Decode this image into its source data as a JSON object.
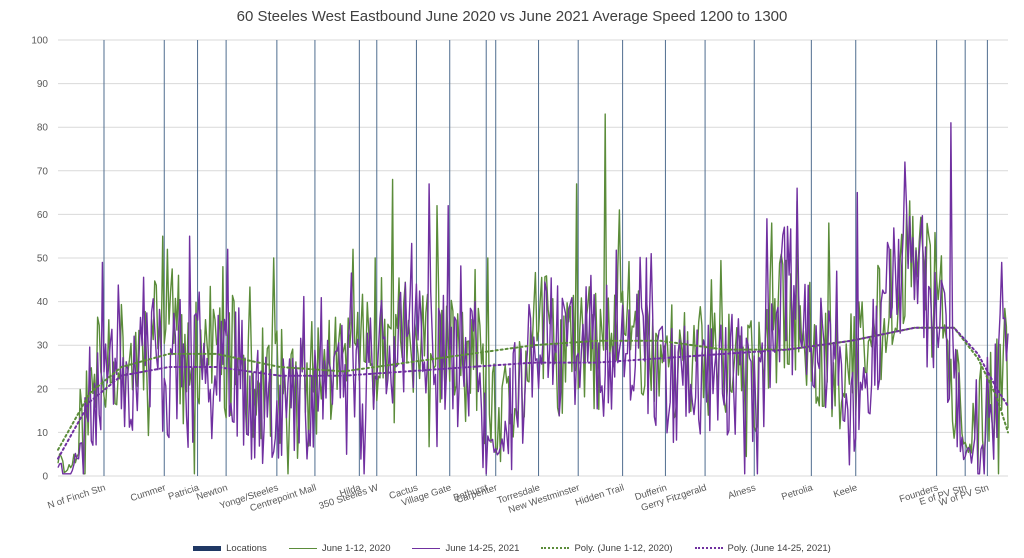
{
  "chart_data": {
    "type": "line",
    "title": "60 Steeles West Eastbound June 2020 vs June 2021 Average Speed 1200 to 1300",
    "xlabel": "",
    "ylabel": "",
    "ylim": [
      0,
      100
    ],
    "yticks": [
      "0",
      "10",
      "20",
      "30",
      "40",
      "50",
      "60",
      "70",
      "80",
      "90",
      "100"
    ],
    "grid": true,
    "legend_position": "bottom",
    "n_points": 600,
    "locations": [
      {
        "name": "N of Finch Stn",
        "index": 29
      },
      {
        "name": "Cummer",
        "index": 67
      },
      {
        "name": "Patricia",
        "index": 88
      },
      {
        "name": "Newton",
        "index": 106
      },
      {
        "name": "Yonge/Steeles",
        "index": 138
      },
      {
        "name": "Centrepoint Mall",
        "index": 162
      },
      {
        "name": "Hilda",
        "index": 190
      },
      {
        "name": "350 Steeles W",
        "index": 201
      },
      {
        "name": "Cactus",
        "index": 226
      },
      {
        "name": "Village Gate",
        "index": 247
      },
      {
        "name": "Bathurst",
        "index": 270
      },
      {
        "name": "Carpenter",
        "index": 276
      },
      {
        "name": "Torresdale",
        "index": 303
      },
      {
        "name": "New Westminster",
        "index": 328
      },
      {
        "name": "Hidden Trail",
        "index": 356
      },
      {
        "name": "Dufferin",
        "index": 383
      },
      {
        "name": "Gerry Fitzgerald",
        "index": 408
      },
      {
        "name": "Alness",
        "index": 439
      },
      {
        "name": "Petrolia",
        "index": 475
      },
      {
        "name": "Keele",
        "index": 503
      },
      {
        "name": "Founders",
        "index": 554
      },
      {
        "name": "E of PV Stn",
        "index": 572
      },
      {
        "name": "W of PV Stn",
        "index": 586
      }
    ],
    "series": [
      {
        "name": "June 1-12, 2020",
        "color": "#5b8c3a",
        "style": "solid",
        "anchors": [
          [
            0,
            4
          ],
          [
            4,
            2
          ],
          [
            8,
            2
          ],
          [
            14,
            8
          ],
          [
            22,
            20
          ],
          [
            28,
            28
          ],
          [
            34,
            30
          ],
          [
            40,
            26
          ],
          [
            50,
            28
          ],
          [
            58,
            34
          ],
          [
            68,
            30
          ],
          [
            72,
            40
          ],
          [
            78,
            24
          ],
          [
            84,
            20
          ],
          [
            90,
            32
          ],
          [
            96,
            30
          ],
          [
            104,
            26
          ],
          [
            112,
            28
          ],
          [
            120,
            22
          ],
          [
            128,
            20
          ],
          [
            136,
            22
          ],
          [
            146,
            18
          ],
          [
            156,
            20
          ],
          [
            166,
            24
          ],
          [
            176,
            26
          ],
          [
            186,
            28
          ],
          [
            196,
            30
          ],
          [
            206,
            32
          ],
          [
            216,
            36
          ],
          [
            222,
            30
          ],
          [
            228,
            28
          ],
          [
            236,
            30
          ],
          [
            246,
            28
          ],
          [
            256,
            26
          ],
          [
            266,
            26
          ],
          [
            272,
            14
          ],
          [
            278,
            10
          ],
          [
            284,
            14
          ],
          [
            292,
            22
          ],
          [
            300,
            30
          ],
          [
            308,
            34
          ],
          [
            316,
            26
          ],
          [
            324,
            28
          ],
          [
            332,
            30
          ],
          [
            342,
            28
          ],
          [
            350,
            32
          ],
          [
            356,
            40
          ],
          [
            362,
            38
          ],
          [
            368,
            30
          ],
          [
            376,
            30
          ],
          [
            384,
            28
          ],
          [
            392,
            26
          ],
          [
            400,
            24
          ],
          [
            408,
            26
          ],
          [
            416,
            28
          ],
          [
            424,
            26
          ],
          [
            432,
            24
          ],
          [
            440,
            22
          ],
          [
            448,
            30
          ],
          [
            456,
            38
          ],
          [
            464,
            36
          ],
          [
            472,
            32
          ],
          [
            480,
            28
          ],
          [
            488,
            26
          ],
          [
            496,
            24
          ],
          [
            504,
            26
          ],
          [
            512,
            30
          ],
          [
            520,
            40
          ],
          [
            528,
            44
          ],
          [
            536,
            48
          ],
          [
            542,
            50
          ],
          [
            548,
            46
          ],
          [
            554,
            42
          ],
          [
            560,
            36
          ],
          [
            566,
            20
          ],
          [
            570,
            8
          ],
          [
            574,
            6
          ],
          [
            580,
            10
          ],
          [
            588,
            16
          ],
          [
            594,
            24
          ],
          [
            599,
            34
          ]
        ],
        "spikes": [
          [
            66,
            55
          ],
          [
            69,
            52
          ],
          [
            104,
            48
          ],
          [
            136,
            50
          ],
          [
            186,
            52
          ],
          [
            200,
            50
          ],
          [
            211,
            68
          ],
          [
            239,
            62
          ],
          [
            271,
            50
          ],
          [
            327,
            67
          ],
          [
            345,
            83
          ],
          [
            354,
            61
          ],
          [
            412,
            45
          ],
          [
            450,
            58
          ],
          [
            466,
            63
          ],
          [
            486,
            58
          ],
          [
            535,
            60
          ]
        ],
        "seed": 11,
        "amplitude": 10
      },
      {
        "name": "June 14-25, 2021",
        "color": "#7030a0",
        "style": "solid",
        "anchors": [
          [
            0,
            3
          ],
          [
            4,
            1
          ],
          [
            8,
            1
          ],
          [
            14,
            6
          ],
          [
            22,
            18
          ],
          [
            28,
            26
          ],
          [
            36,
            30
          ],
          [
            44,
            24
          ],
          [
            52,
            26
          ],
          [
            60,
            30
          ],
          [
            68,
            22
          ],
          [
            76,
            26
          ],
          [
            84,
            20
          ],
          [
            92,
            30
          ],
          [
            100,
            32
          ],
          [
            108,
            28
          ],
          [
            116,
            22
          ],
          [
            124,
            18
          ],
          [
            132,
            20
          ],
          [
            140,
            18
          ],
          [
            148,
            16
          ],
          [
            156,
            20
          ],
          [
            164,
            22
          ],
          [
            172,
            24
          ],
          [
            180,
            26
          ],
          [
            188,
            24
          ],
          [
            196,
            26
          ],
          [
            204,
            30
          ],
          [
            212,
            32
          ],
          [
            220,
            34
          ],
          [
            228,
            30
          ],
          [
            236,
            32
          ],
          [
            244,
            30
          ],
          [
            252,
            26
          ],
          [
            262,
            28
          ],
          [
            270,
            8
          ],
          [
            276,
            6
          ],
          [
            282,
            8
          ],
          [
            290,
            18
          ],
          [
            298,
            30
          ],
          [
            306,
            34
          ],
          [
            314,
            28
          ],
          [
            322,
            30
          ],
          [
            330,
            32
          ],
          [
            340,
            30
          ],
          [
            348,
            28
          ],
          [
            356,
            36
          ],
          [
            362,
            32
          ],
          [
            370,
            28
          ],
          [
            378,
            26
          ],
          [
            386,
            22
          ],
          [
            394,
            22
          ],
          [
            402,
            24
          ],
          [
            410,
            22
          ],
          [
            418,
            24
          ],
          [
            426,
            24
          ],
          [
            434,
            20
          ],
          [
            440,
            14
          ],
          [
            446,
            26
          ],
          [
            454,
            40
          ],
          [
            462,
            44
          ],
          [
            470,
            38
          ],
          [
            478,
            32
          ],
          [
            486,
            24
          ],
          [
            494,
            20
          ],
          [
            500,
            12
          ],
          [
            506,
            18
          ],
          [
            514,
            30
          ],
          [
            522,
            40
          ],
          [
            530,
            46
          ],
          [
            538,
            50
          ],
          [
            546,
            46
          ],
          [
            554,
            38
          ],
          [
            562,
            30
          ],
          [
            568,
            10
          ],
          [
            572,
            4
          ],
          [
            576,
            5
          ],
          [
            582,
            12
          ],
          [
            588,
            14
          ],
          [
            594,
            24
          ],
          [
            599,
            40
          ]
        ],
        "spikes": [
          [
            83,
            55
          ],
          [
            107,
            52
          ],
          [
            234,
            67
          ],
          [
            246,
            62
          ],
          [
            371,
            50
          ],
          [
            447,
            59
          ],
          [
            466,
            66
          ],
          [
            504,
            65
          ],
          [
            534,
            72
          ],
          [
            563,
            81
          ],
          [
            595,
            49
          ]
        ],
        "seed": 23,
        "amplitude": 11
      },
      {
        "name": "Poly. (June 1-12, 2020)",
        "color": "#5b8c3a",
        "style": "dotted",
        "points": [
          [
            0,
            6
          ],
          [
            20,
            19
          ],
          [
            40,
            25
          ],
          [
            70,
            28
          ],
          [
            100,
            28
          ],
          [
            140,
            25
          ],
          [
            180,
            24
          ],
          [
            220,
            26
          ],
          [
            260,
            28
          ],
          [
            300,
            30
          ],
          [
            340,
            31
          ],
          [
            380,
            31
          ],
          [
            420,
            29
          ],
          [
            460,
            29
          ],
          [
            500,
            31
          ],
          [
            540,
            34
          ],
          [
            565,
            34
          ],
          [
            580,
            27
          ],
          [
            592,
            18
          ],
          [
            599,
            10
          ]
        ]
      },
      {
        "name": "Poly. (June 14-25, 2021)",
        "color": "#7030a0",
        "style": "dotted",
        "points": [
          [
            0,
            4
          ],
          [
            20,
            17
          ],
          [
            40,
            23
          ],
          [
            70,
            25
          ],
          [
            100,
            25
          ],
          [
            140,
            23
          ],
          [
            180,
            23
          ],
          [
            220,
            24
          ],
          [
            260,
            25
          ],
          [
            300,
            26
          ],
          [
            340,
            26
          ],
          [
            380,
            27
          ],
          [
            420,
            28
          ],
          [
            460,
            29
          ],
          [
            500,
            31
          ],
          [
            540,
            34
          ],
          [
            565,
            34
          ],
          [
            580,
            28
          ],
          [
            592,
            20
          ],
          [
            599,
            16
          ]
        ]
      }
    ]
  },
  "legend": {
    "locations": "Locations",
    "s2020": "June 1-12, 2020",
    "s2021": "June 14-25, 2021",
    "poly2020": "Poly. (June 1-12, 2020)",
    "poly2021": "Poly. (June 14-25, 2021)"
  }
}
